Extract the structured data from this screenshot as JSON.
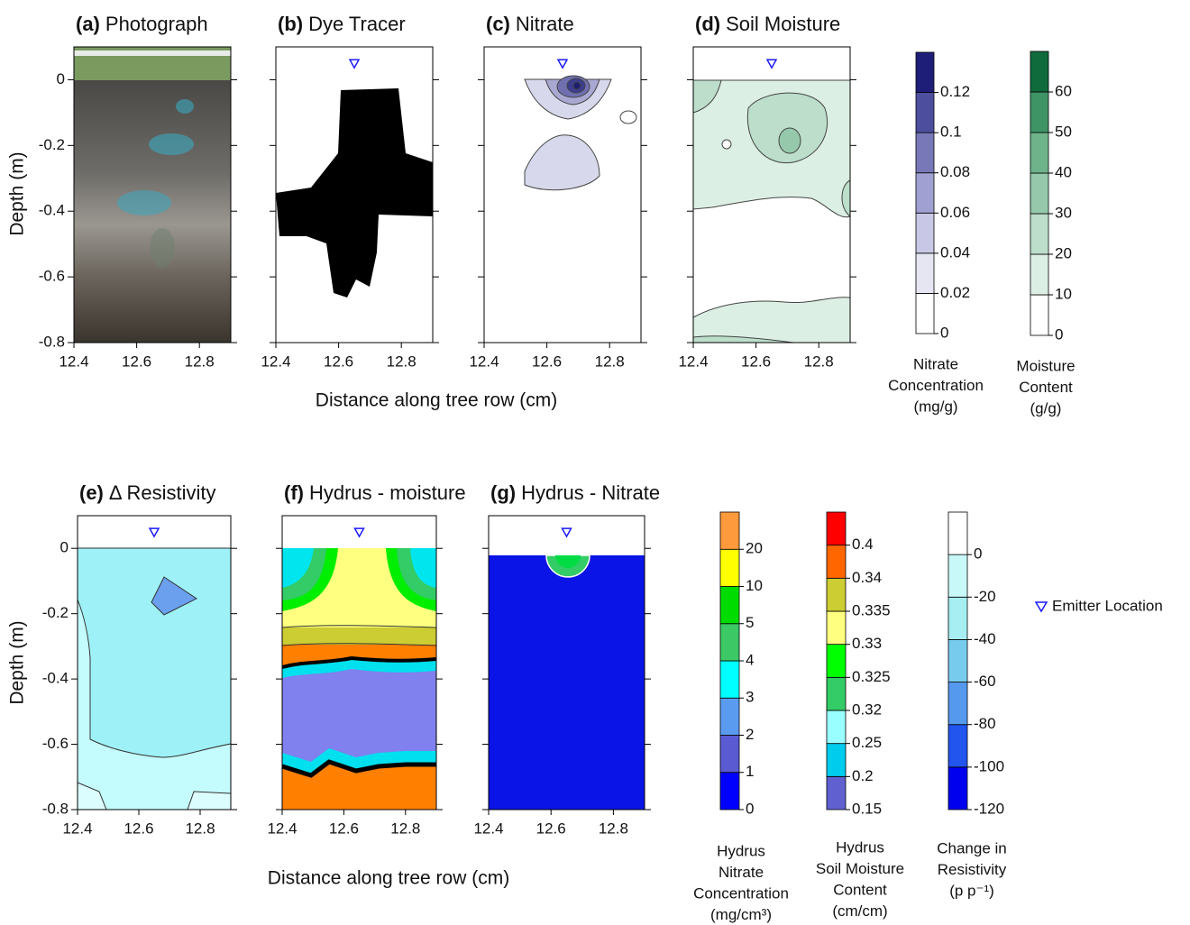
{
  "axes": {
    "xlim": [
      12.4,
      12.9
    ],
    "ylim": [
      -0.8,
      0.1
    ],
    "xticks": [
      12.4,
      12.6,
      12.8
    ],
    "yticks": [
      0,
      -0.2,
      -0.4,
      -0.6,
      -0.8
    ]
  },
  "x_label": "Distance along tree row (cm)",
  "y_label": "Depth (m)",
  "panels": [
    {
      "label": "(a)",
      "title": "Photograph",
      "emitter": false
    },
    {
      "label": "(b)",
      "title": "Dye Tracer",
      "emitter": true
    },
    {
      "label": "(c)",
      "title": "Nitrate",
      "emitter": true
    },
    {
      "label": "(d)",
      "title": "Soil Moisture",
      "emitter": true
    },
    {
      "label": "(e)",
      "title": "Δ Resistivity",
      "emitter": true
    },
    {
      "label": "(f)",
      "title": "Hydrus - moisture",
      "emitter": true
    },
    {
      "label": "(g)",
      "title": "Hydrus - Nitrate",
      "emitter": true
    }
  ],
  "emitter": {
    "x": 12.65,
    "y": 0.05,
    "color": "#1a1aff",
    "label": "Emitter Location"
  },
  "colorbars": [
    {
      "title": [
        "Nitrate",
        "Concentration",
        "(mg/g)"
      ],
      "scale": "linear",
      "lim": [
        0,
        0.14
      ],
      "ticks": [
        0,
        0.02,
        0.04,
        0.06,
        0.08,
        0.1,
        0.12
      ],
      "colors": [
        "#ffffff",
        "#e6e6f2",
        "#c8c8e6",
        "#a0a0d2",
        "#7878b8",
        "#4e4e9e",
        "#1e1e78"
      ]
    },
    {
      "title": [
        "Moisture",
        "Content",
        "(g/g)"
      ],
      "scale": "linear",
      "lim": [
        0,
        70
      ],
      "ticks": [
        0,
        10,
        20,
        30,
        40,
        50,
        60
      ],
      "colors": [
        "#ffffff",
        "#dcefe4",
        "#bcdecb",
        "#96c9ab",
        "#6fb38b",
        "#3f9466",
        "#0f6b3c"
      ]
    },
    {
      "title": [
        "Hydrus",
        "Nitrate",
        "Concentration",
        "(mg/cm³)"
      ],
      "scale": "ordinal",
      "ticks": [
        0,
        1,
        2,
        3,
        4,
        5,
        10,
        20
      ],
      "colors": [
        "#0000ff",
        "#5a5ad2",
        "#5a9bf0",
        "#00ffff",
        "#3cc864",
        "#00dc00",
        "#ffff00",
        "#ff9a3c"
      ]
    },
    {
      "title": [
        "Hydrus",
        "Soil Moisture",
        "Content",
        "(cm/cm)"
      ],
      "scale": "ordinal",
      "ticks": [
        0.15,
        0.2,
        0.25,
        0.32,
        0.325,
        0.33,
        0.335,
        0.34,
        0.4
      ],
      "colors": [
        "#6060d0",
        "#00ccee",
        "#99ffff",
        "#33cc66",
        "#00ff00",
        "#ffff80",
        "#cccc33",
        "#ff6600",
        "#ff0000"
      ]
    },
    {
      "title": [
        "Change in",
        "Resistivity",
        "(p p⁻¹)"
      ],
      "scale": "ordinal",
      "ticks": [
        -120,
        -100,
        -80,
        -60,
        -40,
        -20,
        0
      ],
      "colors": [
        "#0000ee",
        "#2255ee",
        "#5599ee",
        "#77ccee",
        "#a6eef2",
        "#c8f8f8",
        "#ffffff"
      ]
    }
  ]
}
